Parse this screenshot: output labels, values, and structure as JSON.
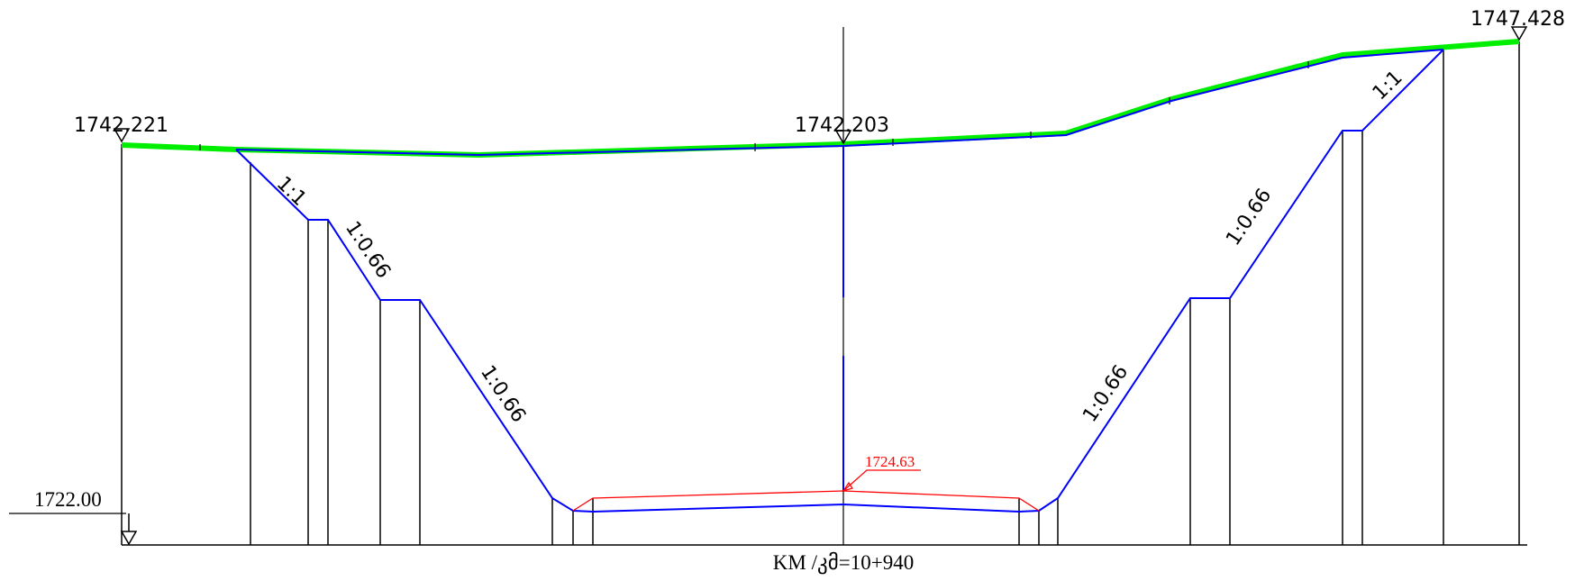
{
  "elevations": {
    "left_ground": "1742.221",
    "center_ground": "1742.203",
    "right_ground": "1747.428",
    "datum": "1722.00",
    "design_level": "1724.63"
  },
  "slopes": {
    "left_upper": "1:1",
    "left_middle": "1:0.66",
    "left_lower": "1:0.66",
    "right_lower": "1:0.66",
    "right_middle": "1:0.66",
    "right_upper": "1:1"
  },
  "chainage": "KM /კმ=10+940",
  "colors": {
    "ground": "#00ee00",
    "excavation": "#0000ff",
    "design": "#ff0000",
    "structure": "#000000"
  }
}
